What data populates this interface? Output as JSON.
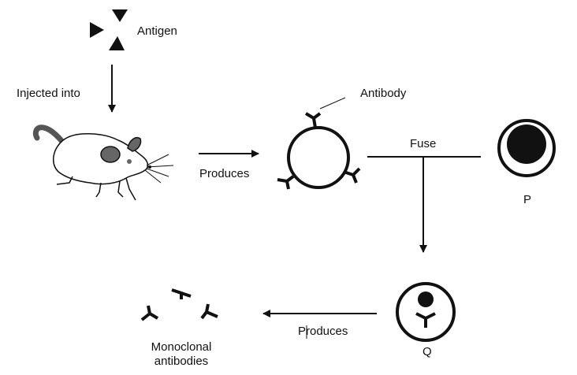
{
  "labels": {
    "antigen": "Antigen",
    "injected_into": "Injected into",
    "antibody": "Antibody",
    "produces_top": "Produces",
    "fuse": "Fuse",
    "p": "P",
    "q": "Q",
    "produces_bottom": "Produces",
    "monoclonal_line1": "Monoclonal",
    "monoclonal_line2": "antibodies"
  },
  "colors": {
    "ink": "#111111",
    "mouse_patch": "#666666"
  },
  "icons": [
    "antigen-triangles-icon",
    "mouse-icon",
    "b-cell-icon",
    "myeloma-cell-icon",
    "hybridoma-cell-icon",
    "antibody-icon"
  ]
}
